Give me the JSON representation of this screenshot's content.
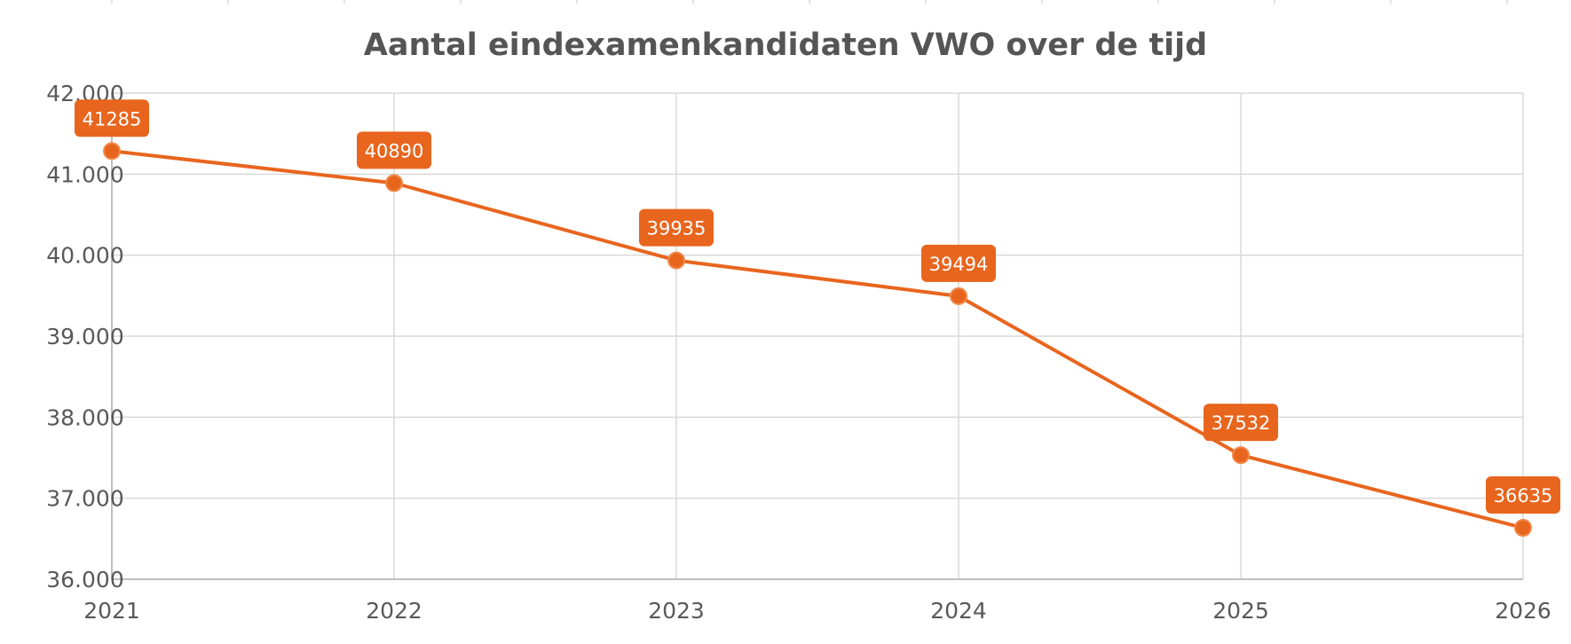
{
  "chart_data": {
    "type": "line",
    "title": "Aantal eindexamenkandidaten VWO over de tijd",
    "xlabel": "",
    "ylabel": "",
    "categories": [
      "2021",
      "2022",
      "2023",
      "2024",
      "2025",
      "2026"
    ],
    "series": [
      {
        "values": [
          41285,
          40890,
          39935,
          39494,
          37532,
          36635
        ],
        "data_labels": [
          "41285",
          "40890",
          "39935",
          "39494",
          "37532",
          "36635"
        ],
        "color": "#E8651E"
      }
    ],
    "ylim": [
      36000,
      42000
    ],
    "yticks": [
      36000,
      37000,
      38000,
      39000,
      40000,
      41000,
      42000
    ],
    "ytick_labels": [
      "36.000",
      "37.000",
      "38.000",
      "39.000",
      "40.000",
      "41.000",
      "42.000"
    ],
    "grid": true,
    "legend": "none",
    "colors": {
      "line": "#E8651E",
      "label_bg": "#E8651E",
      "grid": "#D9D9D9",
      "text": "#595959",
      "title": "#555555"
    }
  }
}
